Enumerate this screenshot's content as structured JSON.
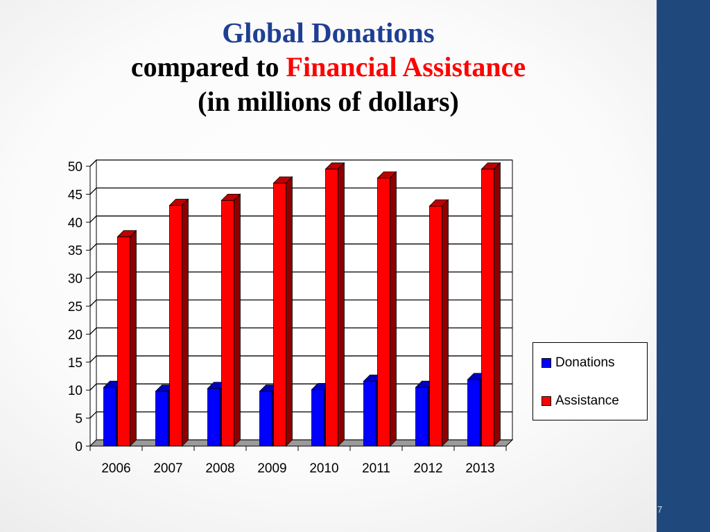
{
  "slide": {
    "title_line1": "Global Donations",
    "title_line2_prefix": "compared to ",
    "title_line2_highlight": "Financial Assistance",
    "title_line3": "(in millions of dollars)",
    "page_number": "7",
    "accent_color": "#1f497d",
    "title_color": "#1f3f94",
    "highlight_color": "#ff0000"
  },
  "chart_data": {
    "type": "bar",
    "style": "3d-clustered",
    "title": "",
    "xlabel": "",
    "ylabel": "",
    "categories": [
      "2006",
      "2007",
      "2008",
      "2009",
      "2010",
      "2011",
      "2012",
      "2013"
    ],
    "series": [
      {
        "name": "Donations",
        "color": "#0000ff",
        "values": [
          10.5,
          9.8,
          10.3,
          9.8,
          10.1,
          11.6,
          10.5,
          11.9
        ]
      },
      {
        "name": "Assistance",
        "color": "#ff0000",
        "values": [
          37.4,
          43.0,
          43.9,
          47.0,
          49.5,
          47.9,
          42.9,
          49.5
        ]
      }
    ],
    "ylim": [
      0,
      50
    ],
    "yticks": [
      0,
      5,
      10,
      15,
      20,
      25,
      30,
      35,
      40,
      45,
      50
    ],
    "grid": true,
    "legend": "right"
  }
}
